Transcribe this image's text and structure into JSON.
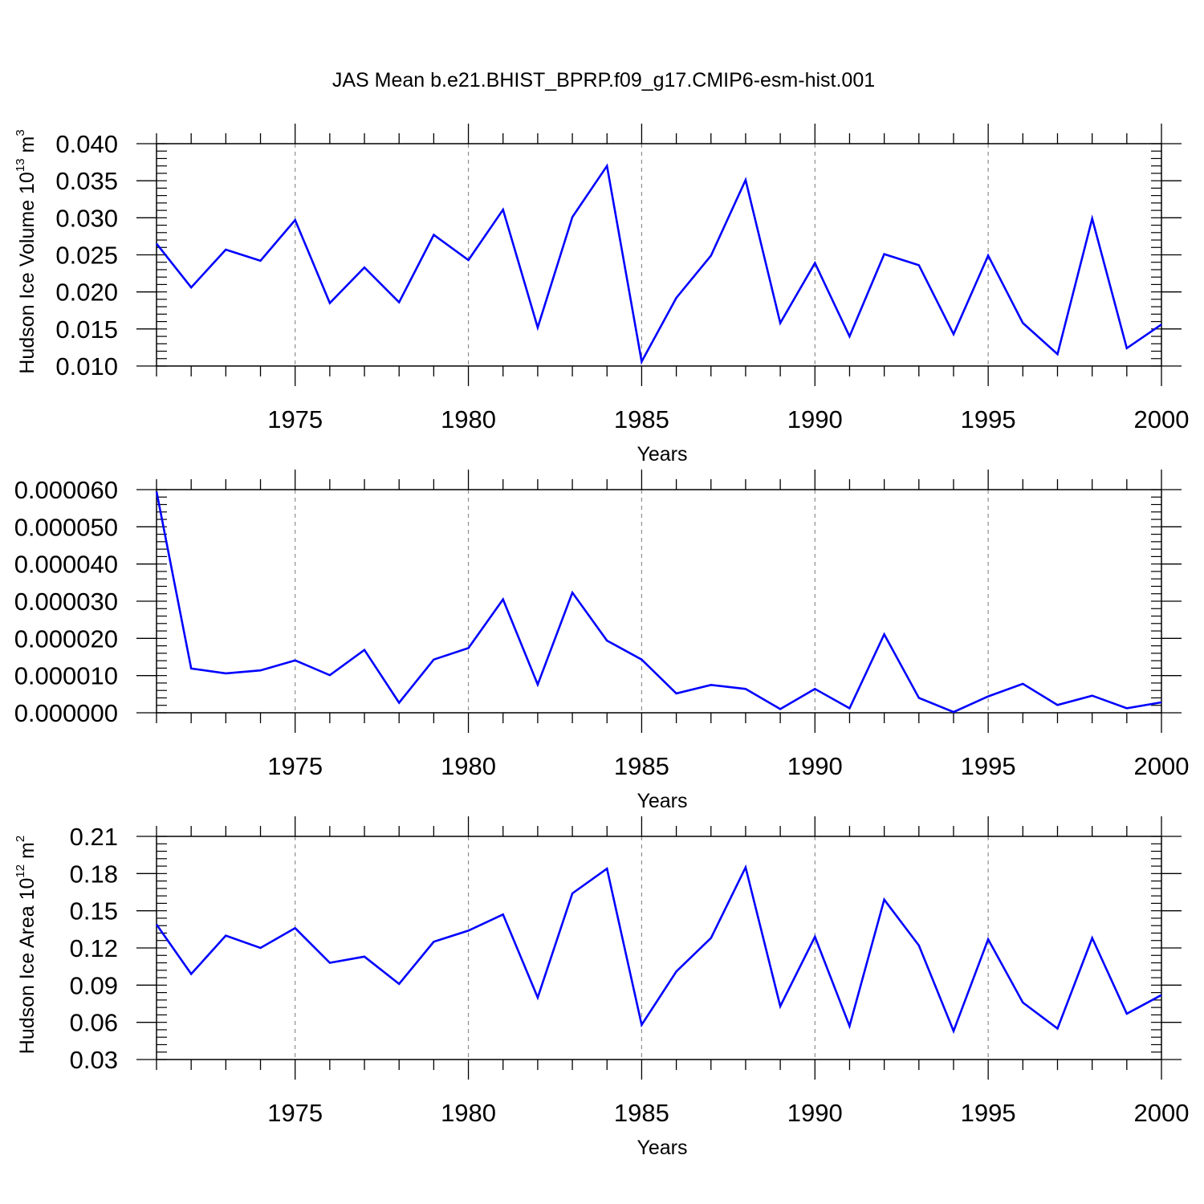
{
  "title": "JAS Mean b.e21.BHIST_BPRP.f09_g17.CMIP6-esm-hist.001",
  "colors": {
    "line": "#0000ff",
    "axis": "#000000",
    "grid": "#8c8c8c"
  },
  "chart_data": [
    {
      "type": "line",
      "ylabel": {
        "text": "Hudson Ice Volume 10",
        "sup": "13",
        "unit": " m",
        "unit_sup": "3"
      },
      "xlabel": "Years",
      "xlim": [
        1971,
        2000
      ],
      "ylim": [
        0.01,
        0.04
      ],
      "xticks": [
        1975,
        1980,
        1985,
        1990,
        1995,
        2000
      ],
      "xtick_labels": [
        "1975",
        "1980",
        "1985",
        "1990",
        "1995",
        "2000"
      ],
      "yticks": [
        0.01,
        0.015,
        0.02,
        0.025,
        0.03,
        0.035,
        0.04
      ],
      "ytick_labels": [
        "0.010",
        "0.015",
        "0.020",
        "0.025",
        "0.030",
        "0.035",
        "0.040"
      ],
      "y_minor_step": 0.001,
      "x": [
        1971,
        1972,
        1973,
        1974,
        1975,
        1976,
        1977,
        1978,
        1979,
        1980,
        1981,
        1982,
        1983,
        1984,
        1985,
        1986,
        1987,
        1988,
        1989,
        1990,
        1991,
        1992,
        1993,
        1994,
        1995,
        1996,
        1997,
        1998,
        1999,
        2000
      ],
      "series": [
        {
          "name": "JAS mean",
          "values": [
            0.0265,
            0.0206,
            0.0257,
            0.0242,
            0.0297,
            0.0185,
            0.0233,
            0.0186,
            0.0277,
            0.0243,
            0.0311,
            0.0152,
            0.0301,
            0.037,
            0.0106,
            0.0192,
            0.0249,
            0.0351,
            0.0158,
            0.0239,
            0.014,
            0.0251,
            0.0236,
            0.0143,
            0.0249,
            0.0158,
            0.0116,
            0.0299,
            0.0124,
            0.0156
          ]
        }
      ]
    },
    {
      "type": "line",
      "ylabel": null,
      "xlabel": "Years",
      "xlim": [
        1971,
        2000
      ],
      "ylim": [
        0.0,
        6e-05
      ],
      "xticks": [
        1975,
        1980,
        1985,
        1990,
        1995,
        2000
      ],
      "xtick_labels": [
        "1975",
        "1980",
        "1985",
        "1990",
        "1995",
        "2000"
      ],
      "yticks": [
        0.0,
        1e-05,
        2e-05,
        3e-05,
        4e-05,
        5e-05,
        6e-05
      ],
      "ytick_labels": [
        "0.000000",
        "0.000010",
        "0.000020",
        "0.000030",
        "0.000040",
        "0.000050",
        "0.000060"
      ],
      "y_minor_step": 2e-06,
      "x": [
        1971,
        1972,
        1973,
        1974,
        1975,
        1976,
        1977,
        1978,
        1979,
        1980,
        1981,
        1982,
        1983,
        1984,
        1985,
        1986,
        1987,
        1988,
        1989,
        1990,
        1991,
        1992,
        1993,
        1994,
        1995,
        1996,
        1997,
        1998,
        1999,
        2000
      ],
      "series": [
        {
          "name": "JAS mean",
          "values": [
            5.95e-05,
            1.19e-05,
            1.06e-05,
            1.14e-05,
            1.41e-05,
            1.01e-05,
            1.69e-05,
            2.7e-06,
            1.43e-05,
            1.74e-05,
            3.05e-05,
            7.6e-06,
            3.23e-05,
            1.94e-05,
            1.43e-05,
            5.2e-06,
            7.5e-06,
            6.4e-06,
            1e-06,
            6.4e-06,
            1.2e-06,
            2.11e-05,
            4e-06,
            2e-07,
            4.4e-06,
            7.8e-06,
            2.1e-06,
            4.6e-06,
            1.2e-06,
            2.8e-06
          ]
        }
      ]
    },
    {
      "type": "line",
      "ylabel": {
        "text": "Hudson Ice Area 10",
        "sup": "12",
        "unit": " m",
        "unit_sup": "2"
      },
      "xlabel": "Years",
      "xlim": [
        1971,
        2000
      ],
      "ylim": [
        0.03,
        0.21
      ],
      "xticks": [
        1975,
        1980,
        1985,
        1990,
        1995,
        2000
      ],
      "xtick_labels": [
        "1975",
        "1980",
        "1985",
        "1990",
        "1995",
        "2000"
      ],
      "yticks": [
        0.03,
        0.06,
        0.09,
        0.12,
        0.15,
        0.18,
        0.21
      ],
      "ytick_labels": [
        "0.03",
        "0.06",
        "0.09",
        "0.12",
        "0.15",
        "0.18",
        "0.21"
      ],
      "y_minor_step": 0.006,
      "x": [
        1971,
        1972,
        1973,
        1974,
        1975,
        1976,
        1977,
        1978,
        1979,
        1980,
        1981,
        1982,
        1983,
        1984,
        1985,
        1986,
        1987,
        1988,
        1989,
        1990,
        1991,
        1992,
        1993,
        1994,
        1995,
        1996,
        1997,
        1998,
        1999,
        2000
      ],
      "series": [
        {
          "name": "JAS mean",
          "values": [
            0.139,
            0.099,
            0.13,
            0.12,
            0.136,
            0.108,
            0.113,
            0.091,
            0.125,
            0.134,
            0.147,
            0.08,
            0.164,
            0.184,
            0.058,
            0.101,
            0.128,
            0.185,
            0.073,
            0.129,
            0.057,
            0.159,
            0.122,
            0.053,
            0.127,
            0.076,
            0.055,
            0.128,
            0.067,
            0.082
          ]
        }
      ]
    }
  ]
}
